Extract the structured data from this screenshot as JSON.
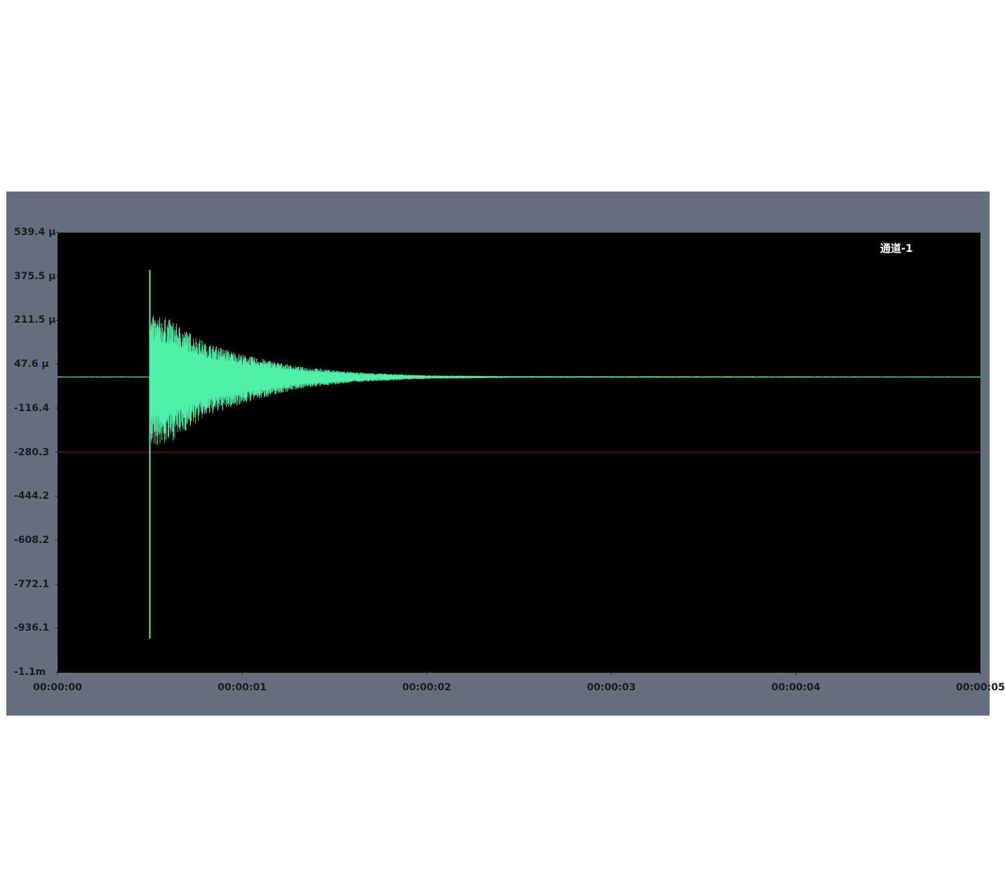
{
  "chart_data": {
    "type": "line",
    "legend": "通道-1",
    "legend_placement": "top-right",
    "y_tick_labels": [
      "539.4 µ",
      "375.5 µ",
      "211.5 µ",
      "47.6 µ",
      "-116.4",
      "-280.3",
      "-444.2",
      "-608.2",
      "-772.1",
      "-936.1",
      "-1.1m"
    ],
    "x_tick_labels": [
      "00:00:00",
      "00:00:01",
      "00:00:02",
      "00:00:03",
      "00:00:04",
      "00:00:05"
    ],
    "xlim_s": [
      0,
      5
    ],
    "ylim_uV": [
      -1100,
      539.4
    ],
    "threshold_uV": -280.3,
    "onset_s": 0.5,
    "spike_peak_uV": [
      -975,
      400
    ],
    "envelope": {
      "t_s": [
        0.5,
        0.6,
        0.8,
        1.0,
        1.3,
        1.6,
        2.0,
        2.5,
        5.0
      ],
      "max_uV": [
        230,
        220,
        130,
        85,
        40,
        18,
        6,
        3,
        2
      ],
      "min_uV": [
        -260,
        -250,
        -150,
        -100,
        -45,
        -20,
        -7,
        -3,
        -2
      ]
    },
    "colors": {
      "signal": "#4ff0a8",
      "threshold": "#7a0a0a",
      "plot_bg": "#000000",
      "panel_bg": "#646e7c"
    }
  }
}
